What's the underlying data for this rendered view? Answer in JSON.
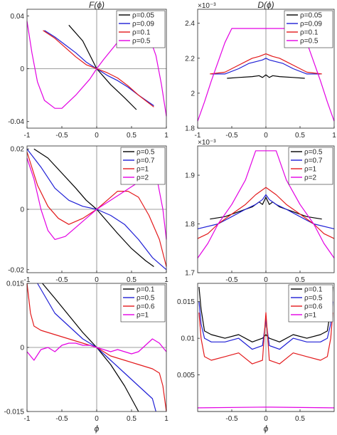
{
  "chart_data": [
    {
      "type": "line",
      "title": "F(ϕ)",
      "xlabel": "",
      "ylabel": "",
      "xlim": [
        -1,
        1
      ],
      "ylim": [
        -0.045,
        0.045
      ],
      "xticks": [
        -1,
        -0.5,
        0,
        0.5,
        1
      ],
      "xtick_labels": [
        "-1",
        "-0.5",
        "0",
        "0.5",
        "1"
      ],
      "yticks": [
        -0.04,
        0,
        0.04
      ],
      "ytick_labels": [
        "-0.04",
        "0",
        "0.04"
      ],
      "legend_position": "top-right",
      "series": [
        {
          "name": "ρ=0.05",
          "color": "#000000",
          "x": [
            -0.4,
            -0.2,
            0,
            0.2,
            0.4,
            0.57
          ],
          "y": [
            0.033,
            0.021,
            0.0,
            -0.012,
            -0.022,
            -0.031
          ]
        },
        {
          "name": "ρ=0.09",
          "color": "#1f1fd6",
          "x": [
            -0.75,
            -0.6,
            -0.45,
            -0.3,
            -0.15,
            0,
            0.15,
            0.3,
            0.45,
            0.6,
            0.82
          ],
          "y": [
            0.029,
            0.024,
            0.018,
            0.012,
            0.005,
            0.0,
            -0.005,
            -0.009,
            -0.014,
            -0.02,
            -0.028
          ]
        },
        {
          "name": "ρ=0.1",
          "color": "#e31a1c",
          "x": [
            -0.77,
            -0.6,
            -0.45,
            -0.3,
            -0.15,
            0,
            0.15,
            0.3,
            0.45,
            0.6,
            0.82
          ],
          "y": [
            0.029,
            0.023,
            0.016,
            0.009,
            0.003,
            0.0,
            -0.003,
            -0.007,
            -0.013,
            -0.02,
            -0.029
          ]
        },
        {
          "name": "ρ=0.5",
          "color": "#e300e3",
          "x": [
            -1,
            -0.93,
            -0.85,
            -0.75,
            -0.6,
            -0.5,
            -0.3,
            -0.1,
            0,
            0.1,
            0.3,
            0.5,
            0.6,
            0.75,
            0.85,
            0.93,
            1
          ],
          "y": [
            0.036,
            0.012,
            -0.01,
            -0.024,
            -0.03,
            -0.03,
            -0.02,
            -0.008,
            0.0,
            0.007,
            0.02,
            0.03,
            0.031,
            0.025,
            0.01,
            -0.012,
            -0.036
          ]
        }
      ]
    },
    {
      "type": "line",
      "title": "D(ϕ)",
      "xlabel": "",
      "ylabel": "",
      "y_exponent": "×10⁻³",
      "xlim": [
        -1,
        1
      ],
      "ylim": [
        1.8,
        2.48
      ],
      "xticks": [
        -1,
        -0.5,
        0,
        0.5,
        1
      ],
      "xtick_labels": [
        "-1",
        "-0.5",
        "0",
        "0.5",
        "1"
      ],
      "yticks": [
        1.8,
        2.0,
        2.2,
        2.4
      ],
      "ytick_labels": [
        "1.8",
        "2",
        "2.2",
        "2.4"
      ],
      "legend_position": "top-right",
      "series": [
        {
          "name": "ρ=0.05",
          "color": "#000000",
          "x": [
            -0.57,
            -0.4,
            -0.2,
            -0.1,
            -0.05,
            0,
            0.05,
            0.1,
            0.2,
            0.4,
            0.57
          ],
          "y": [
            2.085,
            2.09,
            2.095,
            2.1,
            2.09,
            2.105,
            2.09,
            2.1,
            2.095,
            2.09,
            2.085
          ]
        },
        {
          "name": "ρ=0.09",
          "color": "#1f1fd6",
          "x": [
            -0.8,
            -0.6,
            -0.4,
            -0.25,
            -0.15,
            -0.05,
            0,
            0.05,
            0.15,
            0.25,
            0.4,
            0.6,
            0.8
          ],
          "y": [
            2.11,
            2.11,
            2.14,
            2.17,
            2.18,
            2.19,
            2.2,
            2.19,
            2.18,
            2.17,
            2.14,
            2.11,
            2.11
          ]
        },
        {
          "name": "ρ=0.1",
          "color": "#e31a1c",
          "x": [
            -0.82,
            -0.6,
            -0.45,
            -0.3,
            -0.2,
            -0.1,
            0,
            0.1,
            0.2,
            0.3,
            0.45,
            0.6,
            0.82
          ],
          "y": [
            2.11,
            2.12,
            2.15,
            2.18,
            2.2,
            2.21,
            2.225,
            2.21,
            2.2,
            2.18,
            2.15,
            2.12,
            2.11
          ]
        },
        {
          "name": "ρ=0.5",
          "color": "#e300e3",
          "x": [
            -1,
            -0.9,
            -0.8,
            -0.7,
            -0.6,
            -0.5,
            -0.3,
            0,
            0.3,
            0.5,
            0.6,
            0.7,
            0.8,
            0.9,
            1
          ],
          "y": [
            1.84,
            1.95,
            2.07,
            2.18,
            2.29,
            2.37,
            2.37,
            2.37,
            2.37,
            2.37,
            2.29,
            2.18,
            2.07,
            1.95,
            1.84
          ]
        }
      ]
    },
    {
      "type": "line",
      "title": "",
      "xlabel": "",
      "ylabel": "",
      "xlim": [
        -1,
        1
      ],
      "ylim": [
        -0.021,
        0.021
      ],
      "xticks": [
        -1,
        -0.5,
        0,
        0.5,
        1
      ],
      "xtick_labels": [
        "-1",
        "-0.5",
        "0",
        "0.5",
        "1"
      ],
      "yticks": [
        -0.02,
        0,
        0.02
      ],
      "ytick_labels": [
        "-0.02",
        "0",
        "0.02"
      ],
      "legend_position": "top-right",
      "series": [
        {
          "name": "ρ=0.5",
          "color": "#000000",
          "x": [
            -0.9,
            -0.7,
            -0.5,
            -0.3,
            -0.15,
            0,
            0.15,
            0.3,
            0.5,
            0.7,
            0.82
          ],
          "y": [
            0.02,
            0.017,
            0.012,
            0.007,
            0.003,
            0.0,
            -0.004,
            -0.008,
            -0.013,
            -0.017,
            -0.019
          ]
        },
        {
          "name": "ρ=0.7",
          "color": "#1f1fd6",
          "x": [
            -1,
            -0.8,
            -0.6,
            -0.4,
            -0.2,
            0,
            0.2,
            0.4,
            0.6,
            0.8,
            1
          ],
          "y": [
            0.02,
            0.014,
            0.007,
            0.003,
            0.001,
            0.0,
            -0.002,
            -0.005,
            -0.01,
            -0.016,
            -0.02
          ]
        },
        {
          "name": "ρ=1",
          "color": "#e31a1c",
          "x": [
            -1,
            -0.85,
            -0.7,
            -0.55,
            -0.4,
            -0.2,
            0,
            0.15,
            0.3,
            0.45,
            0.6,
            0.75,
            0.9,
            1
          ],
          "y": [
            0.019,
            0.008,
            0.001,
            -0.003,
            -0.005,
            -0.003,
            0.0,
            0.003,
            0.006,
            0.006,
            0.004,
            -0.002,
            -0.01,
            -0.019
          ]
        },
        {
          "name": "ρ=2",
          "color": "#e300e3",
          "x": [
            -1,
            -0.9,
            -0.8,
            -0.7,
            -0.6,
            -0.45,
            -0.3,
            -0.15,
            0,
            0.2,
            0.4,
            0.6,
            0.75,
            0.85,
            0.95,
            1
          ],
          "y": [
            0.017,
            0.01,
            0.0,
            -0.007,
            -0.01,
            -0.009,
            -0.006,
            -0.003,
            0.0,
            0.003,
            0.006,
            0.009,
            0.011,
            0.012,
            0.0,
            -0.01
          ]
        }
      ]
    },
    {
      "type": "line",
      "title": "",
      "xlabel": "",
      "ylabel": "",
      "y_exponent": "×10⁻³",
      "xlim": [
        -1,
        1
      ],
      "ylim": [
        1.7,
        1.96
      ],
      "xticks": [
        -0.5,
        0,
        0.5
      ],
      "xtick_labels": [
        "-0.5",
        "0",
        "0.5"
      ],
      "yticks": [
        1.7,
        1.8,
        1.9
      ],
      "ytick_labels": [
        "1.7",
        "1.8",
        "1.9"
      ],
      "legend_position": "top-right",
      "series": [
        {
          "name": "ρ=0.5",
          "color": "#000000",
          "x": [
            -0.82,
            -0.6,
            -0.4,
            -0.2,
            -0.1,
            -0.05,
            0,
            0.05,
            0.1,
            0.2,
            0.4,
            0.6,
            0.82
          ],
          "y": [
            1.81,
            1.815,
            1.825,
            1.835,
            1.845,
            1.84,
            1.855,
            1.84,
            1.845,
            1.835,
            1.825,
            1.815,
            1.81
          ]
        },
        {
          "name": "ρ=0.7",
          "color": "#1f1fd6",
          "x": [
            -1,
            -0.7,
            -0.5,
            -0.3,
            -0.15,
            -0.05,
            0,
            0.05,
            0.15,
            0.3,
            0.5,
            0.7,
            1
          ],
          "y": [
            1.79,
            1.8,
            1.815,
            1.83,
            1.84,
            1.85,
            1.86,
            1.85,
            1.84,
            1.83,
            1.815,
            1.8,
            1.79
          ]
        },
        {
          "name": "ρ=1",
          "color": "#e31a1c",
          "x": [
            -1,
            -0.85,
            -0.7,
            -0.5,
            -0.3,
            -0.15,
            0,
            0.15,
            0.3,
            0.5,
            0.7,
            0.85,
            1
          ],
          "y": [
            1.77,
            1.78,
            1.8,
            1.82,
            1.84,
            1.86,
            1.875,
            1.86,
            1.84,
            1.82,
            1.8,
            1.78,
            1.77
          ]
        },
        {
          "name": "ρ=2",
          "color": "#e300e3",
          "x": [
            -1,
            -0.85,
            -0.7,
            -0.5,
            -0.3,
            -0.15,
            0.15,
            0.3,
            0.5,
            0.7,
            0.85,
            1
          ],
          "y": [
            1.73,
            1.76,
            1.8,
            1.84,
            1.89,
            1.95,
            1.95,
            1.89,
            1.84,
            1.8,
            1.76,
            1.73
          ]
        }
      ]
    },
    {
      "type": "line",
      "title": "",
      "xlabel": "ϕ",
      "ylabel": "",
      "xlim": [
        -1,
        1
      ],
      "ylim": [
        -0.015,
        0.015
      ],
      "xticks": [
        -1,
        -0.5,
        0,
        0.5,
        1
      ],
      "xtick_labels": [
        "-1",
        "-0.5",
        "0",
        "0.5",
        "1"
      ],
      "yticks": [
        -0.015,
        0,
        0.015
      ],
      "ytick_labels": [
        "-0.015",
        "0",
        "0.015"
      ],
      "legend_position": "top-right",
      "series": [
        {
          "name": "ρ=0.1",
          "color": "#000000",
          "x": [
            -0.78,
            -0.6,
            -0.4,
            -0.2,
            0,
            0.2,
            0.4,
            0.6
          ],
          "y": [
            0.015,
            0.0115,
            0.0075,
            0.0035,
            0.0,
            -0.004,
            -0.009,
            -0.015
          ]
        },
        {
          "name": "ρ=0.5",
          "color": "#1f1fd6",
          "x": [
            -0.85,
            -0.6,
            -0.4,
            -0.2,
            0,
            0.2,
            0.4,
            0.6,
            0.8,
            0.85
          ],
          "y": [
            0.015,
            0.008,
            0.005,
            0.002,
            0.0,
            -0.003,
            -0.006,
            -0.009,
            -0.012,
            -0.015
          ]
        },
        {
          "name": "ρ=0.6",
          "color": "#e31a1c",
          "x": [
            -1,
            -0.95,
            -0.9,
            -0.8,
            -0.6,
            -0.4,
            -0.2,
            0,
            0.2,
            0.4,
            0.6,
            0.8,
            0.9,
            0.95,
            1
          ],
          "y": [
            0.015,
            0.008,
            0.005,
            0.004,
            0.003,
            0.002,
            0.001,
            0.0,
            -0.002,
            -0.003,
            -0.004,
            -0.005,
            -0.006,
            -0.009,
            -0.015
          ]
        },
        {
          "name": "ρ=1",
          "color": "#e300e3",
          "x": [
            -1,
            -0.9,
            -0.8,
            -0.7,
            -0.6,
            -0.5,
            -0.4,
            -0.3,
            -0.2,
            -0.1,
            0,
            0.1,
            0.2,
            0.3,
            0.4,
            0.5,
            0.6,
            0.7,
            0.8,
            0.9,
            1
          ],
          "y": [
            -0.001,
            -0.003,
            -0.0005,
            0.0,
            -0.001,
            0.0005,
            0.001,
            0.001,
            0.0005,
            0.0005,
            0.0,
            -0.0005,
            -0.001,
            -0.0005,
            -0.001,
            -0.0015,
            -0.001,
            0.0005,
            0.002,
            0.001,
            -0.001
          ]
        }
      ]
    },
    {
      "type": "line",
      "title": "",
      "xlabel": "ϕ",
      "ylabel": "",
      "xlim": [
        -1,
        1
      ],
      "ylim": [
        0.0,
        0.0175
      ],
      "xticks": [
        -0.5,
        0,
        0.5
      ],
      "xtick_labels": [
        "-0.5",
        "0",
        "0.5"
      ],
      "yticks": [
        0.005,
        0.01,
        0.015
      ],
      "ytick_labels": [
        "0.005",
        "0.01",
        "0.015"
      ],
      "legend_position": "top-right",
      "series": [
        {
          "name": "ρ=0.1",
          "color": "#000000",
          "x": [
            -0.98,
            -0.95,
            -0.9,
            -0.8,
            -0.6,
            -0.4,
            -0.2,
            -0.05,
            0,
            0.05,
            0.2,
            0.4,
            0.6,
            0.8,
            0.9,
            0.95,
            0.98
          ],
          "y": [
            0.017,
            0.014,
            0.011,
            0.0105,
            0.01,
            0.0105,
            0.0095,
            0.01,
            0.0105,
            0.01,
            0.0095,
            0.0105,
            0.01,
            0.0105,
            0.011,
            0.014,
            0.017
          ]
        },
        {
          "name": "ρ=0.5",
          "color": "#1f1fd6",
          "x": [
            -0.98,
            -0.95,
            -0.9,
            -0.8,
            -0.6,
            -0.4,
            -0.2,
            -0.05,
            0,
            0.05,
            0.2,
            0.4,
            0.6,
            0.8,
            0.9,
            0.95,
            0.98
          ],
          "y": [
            0.015,
            0.012,
            0.01,
            0.0095,
            0.0095,
            0.01,
            0.0085,
            0.009,
            0.0125,
            0.009,
            0.0085,
            0.01,
            0.0095,
            0.0095,
            0.01,
            0.012,
            0.015
          ]
        },
        {
          "name": "ρ=0.6",
          "color": "#e31a1c",
          "x": [
            -0.98,
            -0.95,
            -0.9,
            -0.8,
            -0.6,
            -0.4,
            -0.2,
            -0.05,
            0,
            0.05,
            0.2,
            0.4,
            0.6,
            0.8,
            0.9,
            0.95,
            0.98
          ],
          "y": [
            0.0135,
            0.01,
            0.0075,
            0.007,
            0.0075,
            0.008,
            0.0065,
            0.007,
            0.0135,
            0.007,
            0.0065,
            0.008,
            0.0075,
            0.007,
            0.0075,
            0.01,
            0.0135
          ]
        },
        {
          "name": "ρ=1",
          "color": "#e300e3",
          "x": [
            -1,
            0,
            1
          ],
          "y": [
            0.0005,
            0.0006,
            0.0005
          ]
        }
      ]
    }
  ]
}
